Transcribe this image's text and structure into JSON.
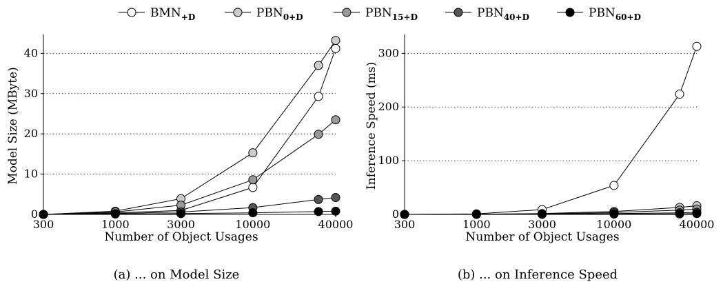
{
  "legend": {
    "entries": [
      {
        "main": "BMN",
        "sub": "+D",
        "color": "#ffffff"
      },
      {
        "main": "PBN",
        "sub": "0+D",
        "color": "#cccccc"
      },
      {
        "main": "PBN",
        "sub": "15+D",
        "color": "#999999"
      },
      {
        "main": "PBN",
        "sub": "40+D",
        "color": "#555555"
      },
      {
        "main": "PBN",
        "sub": "60+D",
        "color": "#000000"
      }
    ]
  },
  "chart_data": [
    {
      "type": "line",
      "caption": "(a) ... on Model Size",
      "xlabel": "Number of Object Usages",
      "ylabel": "Model Size (MByte)",
      "x_scale": "log",
      "x_ticks": [
        300,
        1000,
        3000,
        10000,
        40000
      ],
      "x_tick_labels": [
        "300",
        "1000",
        "3000",
        "10000",
        "40000"
      ],
      "ylim": [
        0,
        44
      ],
      "y_ticks": [
        0,
        10,
        20,
        30,
        40
      ],
      "y_tick_labels": [
        "0",
        "10",
        "20",
        "30",
        "40"
      ],
      "grid": "horizontal dotted",
      "series": [
        {
          "name": "BMN+D",
          "color": "#ffffff",
          "x": [
            300,
            1000,
            3000,
            10000,
            30000,
            40000
          ],
          "y": [
            0,
            0.4,
            1.0,
            6.7,
            29.3,
            41.2
          ]
        },
        {
          "name": "PBN0+D",
          "color": "#cccccc",
          "x": [
            300,
            1000,
            3000,
            10000,
            30000,
            40000
          ],
          "y": [
            0,
            0.8,
            3.9,
            15.3,
            37.0,
            43.2
          ]
        },
        {
          "name": "PBN15+D",
          "color": "#999999",
          "x": [
            300,
            1000,
            3000,
            10000,
            30000,
            40000
          ],
          "y": [
            0,
            0.6,
            2.3,
            8.6,
            19.9,
            23.5
          ]
        },
        {
          "name": "PBN40+D",
          "color": "#555555",
          "x": [
            300,
            1000,
            3000,
            10000,
            30000,
            40000
          ],
          "y": [
            0,
            0.2,
            0.6,
            1.7,
            3.7,
            4.2
          ]
        },
        {
          "name": "PBN60+D",
          "color": "#000000",
          "x": [
            300,
            1000,
            3000,
            10000,
            30000,
            40000
          ],
          "y": [
            0,
            0.1,
            0.2,
            0.4,
            0.7,
            0.8
          ]
        }
      ]
    },
    {
      "type": "line",
      "caption": "(b) ... on Inference Speed",
      "xlabel": "Number of Object Usages",
      "ylabel": "Inference Speed (ms)",
      "x_scale": "log",
      "x_ticks": [
        300,
        1000,
        3000,
        10000,
        40000
      ],
      "x_tick_labels": [
        "300",
        "1000",
        "3000",
        "10000",
        "40000"
      ],
      "ylim": [
        0,
        330
      ],
      "y_ticks": [
        0,
        100,
        200,
        300
      ],
      "y_tick_labels": [
        "0",
        "100",
        "200",
        "300"
      ],
      "grid": "horizontal dotted",
      "series": [
        {
          "name": "BMN+D",
          "color": "#ffffff",
          "x": [
            300,
            1000,
            3000,
            10000,
            30000,
            40000
          ],
          "y": [
            0,
            1,
            9,
            54,
            224,
            313
          ]
        },
        {
          "name": "PBN0+D",
          "color": "#cccccc",
          "x": [
            300,
            1000,
            3000,
            10000,
            30000,
            40000
          ],
          "y": [
            0,
            0.5,
            1.5,
            5.5,
            13,
            16
          ]
        },
        {
          "name": "PBN15+D",
          "color": "#999999",
          "x": [
            300,
            1000,
            3000,
            10000,
            30000,
            40000
          ],
          "y": [
            0,
            0.4,
            1,
            3.5,
            8,
            10
          ]
        },
        {
          "name": "PBN40+D",
          "color": "#555555",
          "x": [
            300,
            1000,
            3000,
            10000,
            30000,
            40000
          ],
          "y": [
            0,
            0.2,
            0.5,
            1.5,
            3,
            4
          ]
        },
        {
          "name": "PBN60+D",
          "color": "#000000",
          "x": [
            300,
            1000,
            3000,
            10000,
            30000,
            40000
          ],
          "y": [
            0,
            0.1,
            0.2,
            0.6,
            1,
            1.5
          ]
        }
      ]
    }
  ]
}
